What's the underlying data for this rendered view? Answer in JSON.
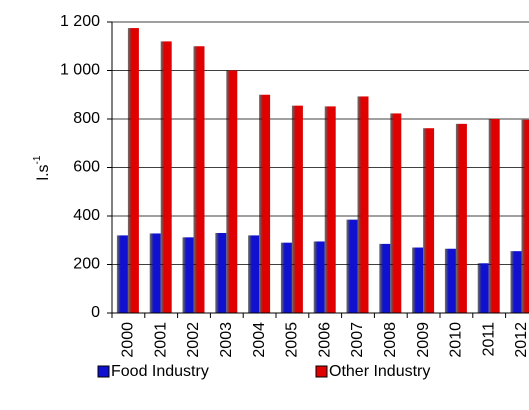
{
  "chart_data": {
    "type": "bar",
    "y_label": "l.s",
    "y_label_superscript": "-1",
    "categories": [
      "2000",
      "2001",
      "2002",
      "2003",
      "2004",
      "2005",
      "2006",
      "2007",
      "2008",
      "2009",
      "2010",
      "2011",
      "2012"
    ],
    "series": [
      {
        "name": "Food Industry",
        "color": "#1010d0",
        "values": [
          320,
          328,
          312,
          330,
          320,
          290,
          295,
          385,
          285,
          270,
          265,
          205,
          255
        ]
      },
      {
        "name": "Other Industry",
        "color": "#e00000",
        "values": [
          1175,
          1120,
          1100,
          1000,
          900,
          855,
          852,
          893,
          823,
          762,
          780,
          800,
          797
        ]
      }
    ],
    "ylim": [
      0,
      1200
    ],
    "yticks": [
      0,
      200,
      400,
      600,
      800,
      {
        "value": 1000,
        "label": "1 000"
      },
      {
        "value": 1200,
        "label": "1 200"
      }
    ],
    "grid": true,
    "legend": "bottom"
  }
}
